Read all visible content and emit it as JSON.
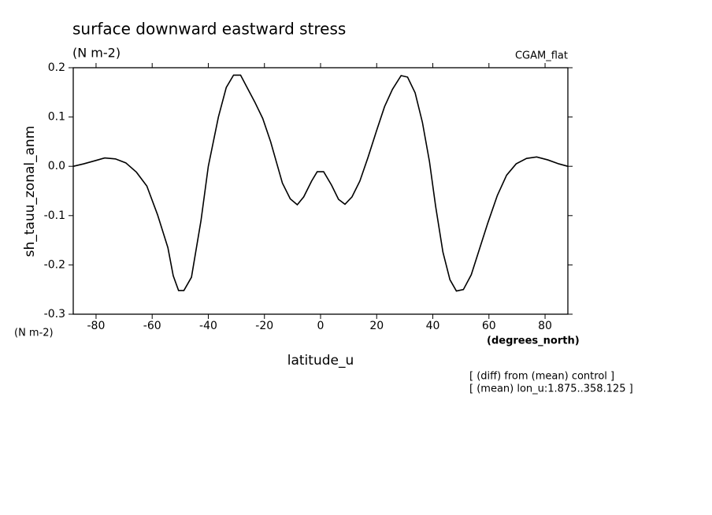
{
  "chart_data": {
    "type": "line",
    "title": "surface downward eastward stress",
    "subtitle": "(N m-2)",
    "dataset_label": "CGAM_flat",
    "y_label": "sh_tauu_zonal_anm",
    "y_units": "(N m-2)",
    "x_label": "latitude_u",
    "x_units": "(degrees_north)",
    "annotations": [
      "[ (diff) from (mean) control ]",
      "[ (mean) lon_u:1.875..358.125 ]"
    ],
    "x": [
      -88.1,
      -84.4,
      -80.6,
      -76.9,
      -73.1,
      -69.4,
      -65.6,
      -61.9,
      -58.1,
      -54.4,
      -52.5,
      -50.6,
      -48.7,
      -46.0,
      -42.6,
      -40.0,
      -36.4,
      -33.6,
      -31.0,
      -28.5,
      -26.2,
      -23.4,
      -20.6,
      -17.8,
      -15.8,
      -13.6,
      -10.8,
      -8.3,
      -6.0,
      -3.2,
      -1.2,
      1.1,
      3.9,
      6.4,
      8.7,
      11.2,
      14.0,
      16.9,
      20.0,
      22.8,
      25.6,
      28.7,
      31.0,
      33.7,
      36.3,
      38.8,
      41.0,
      43.6,
      46.1,
      48.4,
      50.9,
      53.7,
      56.5,
      59.6,
      63.0,
      66.3,
      69.7,
      73.4,
      77.0,
      81.0,
      84.9,
      88.1
    ],
    "series": [
      {
        "color": "#000000",
        "values": [
          0.0,
          0.005,
          0.011,
          0.017,
          0.015,
          0.007,
          -0.012,
          -0.04,
          -0.098,
          -0.165,
          -0.222,
          -0.252,
          -0.252,
          -0.225,
          -0.11,
          0.0,
          0.1,
          0.16,
          0.185,
          0.185,
          0.16,
          0.13,
          0.097,
          0.05,
          0.01,
          -0.034,
          -0.066,
          -0.078,
          -0.062,
          -0.03,
          -0.011,
          -0.011,
          -0.038,
          -0.067,
          -0.077,
          -0.062,
          -0.03,
          0.018,
          0.073,
          0.121,
          0.156,
          0.184,
          0.181,
          0.149,
          0.089,
          0.01,
          -0.081,
          -0.174,
          -0.23,
          -0.253,
          -0.25,
          -0.22,
          -0.17,
          -0.115,
          -0.059,
          -0.018,
          0.005,
          0.016,
          0.019,
          0.013,
          0.005,
          0.0
        ]
      }
    ],
    "xlim": [
      -88.125,
      88.125
    ],
    "ylim": [
      -0.3,
      0.2
    ],
    "xticks": [
      -80,
      -60,
      -40,
      -20,
      0,
      20,
      40,
      60,
      80
    ],
    "yticks": [
      -0.3,
      -0.2,
      -0.1,
      {
        "value": 0,
        "label": "0.0"
      },
      0.1,
      0.2
    ]
  }
}
